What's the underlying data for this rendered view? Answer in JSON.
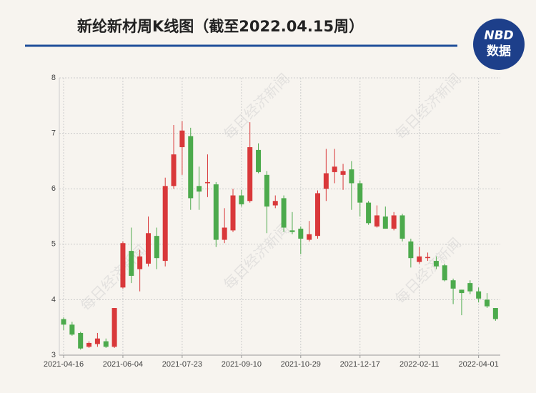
{
  "chart_data": {
    "type": "candlestick",
    "title": "新纶新材周K线图（截至2022.04.15周）",
    "logo": {
      "text": "NBD",
      "subtext": "数据"
    },
    "watermark": "每日经济新闻",
    "categories": [
      "2021-04-16",
      null,
      null,
      null,
      null,
      null,
      null,
      "2021-06-04",
      null,
      null,
      null,
      null,
      null,
      null,
      "2021-07-23",
      null,
      null,
      null,
      null,
      null,
      null,
      "2021-09-10",
      null,
      null,
      null,
      null,
      null,
      null,
      "2021-10-29",
      null,
      null,
      null,
      null,
      null,
      null,
      "2021-12-17",
      null,
      null,
      null,
      null,
      null,
      null,
      "2022-02-11",
      null,
      null,
      null,
      null,
      null,
      null,
      "2022-04-01",
      null,
      null
    ],
    "open": [
      3.65,
      3.55,
      3.4,
      3.15,
      3.2,
      3.25,
      3.15,
      4.22,
      4.88,
      4.55,
      4.65,
      5.15,
      4.7,
      6.05,
      6.75,
      6.95,
      6.05,
      6.1,
      6.08,
      5.08,
      5.25,
      5.88,
      5.78,
      6.7,
      6.25,
      5.7,
      5.83,
      5.25,
      5.28,
      5.08,
      5.15,
      6.0,
      6.3,
      6.25,
      6.35,
      6.1,
      5.75,
      5.32,
      5.5,
      5.28,
      5.52,
      5.05,
      4.68,
      4.75,
      4.7,
      4.62,
      4.35,
      4.18,
      4.3,
      4.15,
      4.0,
      3.85
    ],
    "high": [
      3.68,
      3.6,
      3.42,
      3.25,
      3.4,
      3.3,
      3.85,
      5.05,
      5.3,
      4.9,
      5.5,
      5.3,
      6.2,
      7.15,
      7.22,
      7.1,
      6.4,
      6.62,
      6.12,
      5.65,
      6.0,
      5.98,
      7.2,
      6.82,
      6.32,
      5.88,
      5.88,
      5.58,
      5.32,
      5.42,
      5.97,
      6.72,
      6.72,
      6.45,
      6.5,
      6.15,
      5.78,
      5.7,
      5.68,
      5.58,
      5.55,
      5.1,
      4.95,
      4.85,
      4.78,
      4.65,
      4.38,
      4.18,
      4.35,
      4.22,
      4.12,
      3.85
    ],
    "low": [
      3.45,
      3.35,
      3.1,
      3.13,
      3.15,
      3.13,
      3.13,
      4.2,
      4.3,
      4.15,
      4.6,
      4.55,
      4.6,
      6.0,
      6.25,
      5.62,
      5.62,
      5.85,
      4.95,
      5.02,
      5.22,
      5.68,
      5.75,
      6.28,
      5.2,
      5.65,
      5.22,
      5.18,
      4.82,
      5.05,
      5.1,
      5.78,
      6.1,
      5.98,
      5.62,
      5.5,
      5.35,
      5.3,
      5.28,
      5.25,
      5.05,
      4.58,
      4.65,
      4.7,
      4.55,
      4.33,
      3.92,
      3.72,
      4.1,
      3.95,
      3.85,
      3.62
    ],
    "close": [
      3.55,
      3.37,
      3.12,
      3.22,
      3.3,
      3.15,
      3.85,
      5.02,
      4.43,
      4.78,
      5.2,
      4.75,
      6.05,
      6.62,
      7.05,
      5.83,
      5.95,
      6.12,
      5.08,
      5.3,
      5.88,
      5.72,
      6.75,
      6.3,
      5.68,
      5.78,
      5.3,
      5.22,
      5.1,
      5.18,
      5.92,
      6.28,
      6.4,
      6.32,
      6.1,
      5.75,
      5.38,
      5.52,
      5.28,
      5.52,
      5.1,
      4.75,
      4.78,
      4.77,
      4.6,
      4.35,
      4.2,
      4.12,
      4.15,
      4.02,
      3.88,
      3.65
    ],
    "up_color": "#d9383a",
    "down_color": "#4caa4c",
    "ylim": [
      3,
      8
    ],
    "yticks": [
      3,
      4,
      5,
      6,
      7,
      8
    ],
    "grid": true
  }
}
